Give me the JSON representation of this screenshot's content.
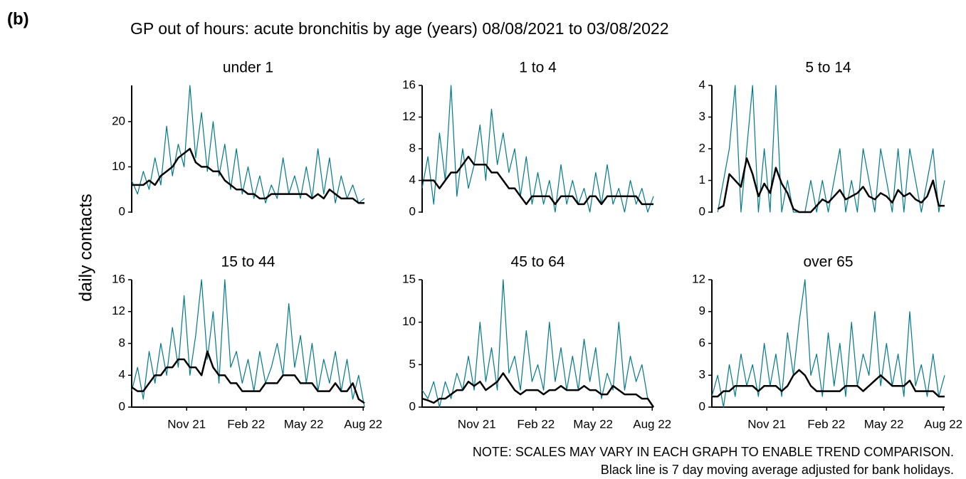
{
  "label": "(b)",
  "title": "GP out of hours: acute bronchitis by age (years) 08/08/2021 to 03/08/2022",
  "y_label": "daily contacts",
  "notes": [
    "NOTE: SCALES MAY VARY IN EACH GRAPH TO ENABLE TREND COMPARISON.",
    "Black line is 7 day moving average adjusted for bank holidays."
  ],
  "chart_data": [
    {
      "type": "line",
      "title": "under 1",
      "x": [
        0,
        9,
        18,
        27,
        36,
        45,
        54,
        63,
        72,
        81,
        90,
        99,
        108,
        117,
        126,
        135,
        144,
        153,
        162,
        171,
        180,
        189,
        198,
        207,
        216,
        225,
        234,
        243,
        252,
        261,
        270,
        279,
        288,
        297,
        306,
        315,
        324,
        333,
        342,
        351,
        360
      ],
      "xlim": [
        0,
        360
      ],
      "ylim": [
        0,
        28
      ],
      "yticks": [
        0,
        10,
        20
      ],
      "series": [
        {
          "color": "#00798c",
          "values": [
            7,
            4,
            9,
            5,
            12,
            6,
            19,
            8,
            15,
            10,
            28,
            12,
            22,
            9,
            20,
            8,
            15,
            5,
            14,
            4,
            10,
            3,
            8,
            2,
            6,
            3,
            12,
            4,
            8,
            3,
            10,
            3,
            14,
            4,
            12,
            2,
            8,
            3,
            6,
            2,
            3
          ]
        },
        {
          "color": "#000000",
          "values": [
            6,
            6,
            6,
            7,
            6,
            8,
            9,
            10,
            12,
            13,
            14,
            11,
            10,
            10,
            9,
            9,
            7,
            6,
            5,
            5,
            4,
            4,
            3,
            3,
            4,
            4,
            4,
            4,
            4,
            4,
            4,
            3,
            4,
            3,
            5,
            4,
            3,
            3,
            3,
            2,
            2
          ]
        }
      ]
    },
    {
      "type": "line",
      "title": "1 to 4",
      "x": [
        0,
        9,
        18,
        27,
        36,
        45,
        54,
        63,
        72,
        81,
        90,
        99,
        108,
        117,
        126,
        135,
        144,
        153,
        162,
        171,
        180,
        189,
        198,
        207,
        216,
        225,
        234,
        243,
        252,
        261,
        270,
        279,
        288,
        297,
        306,
        315,
        324,
        333,
        342,
        351,
        360
      ],
      "xlim": [
        0,
        360
      ],
      "ylim": [
        0,
        16
      ],
      "yticks": [
        0,
        4,
        8,
        12,
        16
      ],
      "series": [
        {
          "color": "#00798c",
          "values": [
            3,
            7,
            1,
            10,
            4,
            16,
            2,
            8,
            3,
            6,
            11,
            4,
            13,
            6,
            10,
            5,
            8,
            2,
            7,
            1,
            5,
            1,
            4,
            0,
            6,
            1,
            4,
            1,
            3,
            0,
            5,
            1,
            6,
            1,
            3,
            0,
            4,
            1,
            3,
            0,
            2
          ]
        },
        {
          "color": "#000000",
          "values": [
            4,
            4,
            4,
            3,
            4,
            5,
            5,
            6,
            7,
            6,
            6,
            6,
            5,
            5,
            4,
            3,
            3,
            2,
            1,
            2,
            2,
            2,
            2,
            1,
            2,
            2,
            2,
            1,
            1,
            2,
            2,
            1,
            2,
            2,
            2,
            2,
            2,
            2,
            1,
            1,
            1
          ]
        }
      ]
    },
    {
      "type": "line",
      "title": "5 to 14",
      "x": [
        0,
        9,
        18,
        27,
        36,
        45,
        54,
        63,
        72,
        81,
        90,
        99,
        108,
        117,
        126,
        135,
        144,
        153,
        162,
        171,
        180,
        189,
        198,
        207,
        216,
        225,
        234,
        243,
        252,
        261,
        270,
        279,
        288,
        297,
        306,
        315,
        324,
        333,
        342,
        351,
        360
      ],
      "xlim": [
        0,
        360
      ],
      "ylim": [
        0,
        4
      ],
      "yticks": [
        0,
        1,
        2,
        3,
        4
      ],
      "series": [
        {
          "color": "#00798c",
          "values": [
            null,
            0,
            1,
            2,
            4,
            0,
            2,
            4,
            0,
            2,
            0,
            4,
            0,
            1,
            0,
            0,
            0,
            1,
            0,
            1,
            0,
            1,
            2,
            0,
            1,
            0,
            2,
            1,
            0,
            2,
            1,
            0,
            2,
            0,
            2,
            1,
            0,
            1,
            2,
            0,
            1
          ]
        },
        {
          "color": "#000000",
          "values": [
            null,
            0.1,
            0.2,
            1.2,
            1,
            0.8,
            1.7,
            1.2,
            0.5,
            0.9,
            0.6,
            1.4,
            0.9,
            0.6,
            0.1,
            0,
            0,
            0,
            0.2,
            0.4,
            0.3,
            0.5,
            0.7,
            0.4,
            0.5,
            0.6,
            0.8,
            0.5,
            0.4,
            0.6,
            0.5,
            0.3,
            0.7,
            0.5,
            0.6,
            0.4,
            0.3,
            0.5,
            1,
            0.2,
            0.2
          ]
        }
      ]
    },
    {
      "type": "line",
      "title": "15 to 44",
      "x": [
        0,
        9,
        18,
        27,
        36,
        45,
        54,
        63,
        72,
        81,
        90,
        99,
        108,
        117,
        126,
        135,
        144,
        153,
        162,
        171,
        180,
        189,
        198,
        207,
        216,
        225,
        234,
        243,
        252,
        261,
        270,
        279,
        288,
        297,
        306,
        315,
        324,
        333,
        342,
        351,
        360
      ],
      "xlim": [
        0,
        360
      ],
      "ylim": [
        0,
        16
      ],
      "yticks": [
        0,
        4,
        8,
        12,
        16
      ],
      "xticks": [
        {
          "value": 85,
          "label": "Nov 21"
        },
        {
          "value": 177,
          "label": "Feb 22"
        },
        {
          "value": 266,
          "label": "May 22"
        },
        {
          "value": 358,
          "label": "Aug 22"
        }
      ],
      "series": [
        {
          "color": "#00798c",
          "values": [
            2,
            5,
            1,
            7,
            3,
            8,
            4,
            10,
            5,
            14,
            4,
            9,
            16,
            6,
            12,
            3,
            16,
            5,
            7,
            3,
            6,
            2,
            7,
            3,
            5,
            8,
            4,
            13,
            5,
            9,
            3,
            8,
            2,
            6,
            3,
            7,
            2,
            6,
            1,
            4,
            0
          ]
        },
        {
          "color": "#000000",
          "values": [
            2.5,
            2,
            2,
            3,
            4,
            4,
            5,
            5,
            6,
            6,
            5,
            5,
            4,
            7,
            5,
            4,
            4,
            3,
            3,
            2,
            2,
            2,
            2,
            3,
            3,
            3,
            4,
            4,
            4,
            3,
            3,
            3,
            2,
            2,
            2,
            3,
            2,
            2,
            3,
            1,
            0.5
          ]
        }
      ]
    },
    {
      "type": "line",
      "title": "45 to 64",
      "x": [
        0,
        9,
        18,
        27,
        36,
        45,
        54,
        63,
        72,
        81,
        90,
        99,
        108,
        117,
        126,
        135,
        144,
        153,
        162,
        171,
        180,
        189,
        198,
        207,
        216,
        225,
        234,
        243,
        252,
        261,
        270,
        279,
        288,
        297,
        306,
        315,
        324,
        333,
        342,
        351,
        360
      ],
      "xlim": [
        0,
        360
      ],
      "ylim": [
        0,
        15
      ],
      "yticks": [
        0,
        5,
        10,
        15
      ],
      "xticks": [
        {
          "value": 85,
          "label": "Nov 21"
        },
        {
          "value": 177,
          "label": "Feb 22"
        },
        {
          "value": 266,
          "label": "May 22"
        },
        {
          "value": 358,
          "label": "Aug 22"
        }
      ],
      "series": [
        {
          "color": "#00798c",
          "values": [
            2,
            1,
            3,
            0,
            3,
            1,
            4,
            2,
            6,
            2,
            10,
            3,
            7,
            2,
            15,
            4,
            6,
            2,
            9,
            3,
            5,
            2,
            10,
            3,
            7,
            2,
            6,
            2,
            8,
            3,
            7,
            1,
            4,
            2,
            10,
            2,
            6,
            3,
            5,
            1,
            0
          ]
        },
        {
          "color": "#000000",
          "values": [
            1,
            0.8,
            0.5,
            1,
            1,
            1.5,
            2,
            2,
            3,
            2.5,
            3,
            2,
            2.5,
            3,
            4,
            3,
            2,
            1.5,
            2,
            2,
            2,
            1.5,
            2,
            2,
            2.5,
            2,
            2,
            2,
            2.5,
            2,
            2,
            1.5,
            1.5,
            2.5,
            2,
            1.5,
            1.5,
            1.5,
            1,
            1,
            0
          ]
        }
      ]
    },
    {
      "type": "line",
      "title": "over 65",
      "x": [
        0,
        9,
        18,
        27,
        36,
        45,
        54,
        63,
        72,
        81,
        90,
        99,
        108,
        117,
        126,
        135,
        144,
        153,
        162,
        171,
        180,
        189,
        198,
        207,
        216,
        225,
        234,
        243,
        252,
        261,
        270,
        279,
        288,
        297,
        306,
        315,
        324,
        333,
        342,
        351,
        360
      ],
      "xlim": [
        0,
        360
      ],
      "ylim": [
        0,
        12
      ],
      "yticks": [
        0,
        3,
        6,
        9,
        12
      ],
      "xticks": [
        {
          "value": 85,
          "label": "Nov 21"
        },
        {
          "value": 177,
          "label": "Feb 22"
        },
        {
          "value": 266,
          "label": "May 22"
        },
        {
          "value": 358,
          "label": "Aug 22"
        }
      ],
      "series": [
        {
          "color": "#00798c",
          "values": [
            1,
            3,
            0,
            4,
            1,
            5,
            2,
            4,
            1,
            6,
            2,
            5,
            1,
            7,
            3,
            8,
            12,
            3,
            5,
            1,
            7,
            2,
            6,
            1,
            8,
            2,
            5,
            3,
            9,
            2,
            6,
            2,
            5,
            1,
            9,
            2,
            4,
            1,
            5,
            1,
            3
          ]
        },
        {
          "color": "#000000",
          "values": [
            1,
            1,
            1.5,
            1.5,
            2,
            2,
            2,
            2,
            1.5,
            2,
            2,
            2,
            1.5,
            2,
            3,
            3.5,
            3,
            2,
            1.5,
            1.5,
            1.5,
            1.5,
            1.5,
            2,
            2,
            2,
            1.5,
            2,
            2.5,
            3,
            2.5,
            2,
            2,
            2,
            2.5,
            1.5,
            1.5,
            1.5,
            1.5,
            1,
            1
          ]
        }
      ]
    }
  ]
}
